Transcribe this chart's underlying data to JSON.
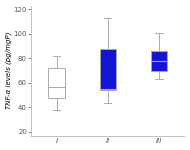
{
  "groups": [
    "I",
    "II",
    "III"
  ],
  "box_colors": [
    "#ffffff",
    "#1414d4",
    "#1414d4"
  ],
  "edge_color": "#aaaaaa",
  "median_color": "#aaaaaa",
  "whisker_color": "#aaaaaa",
  "ylabel": "TNF-α levels (pg/mgP)",
  "ylim": [
    17,
    123
  ],
  "yticks": [
    20,
    40,
    60,
    80,
    100,
    120
  ],
  "whisker_low": [
    38,
    44,
    63
  ],
  "whisker_high": [
    82,
    113,
    101
  ],
  "q1": [
    48,
    54,
    70
  ],
  "q3": [
    72,
    88,
    86
  ],
  "median": [
    57,
    55,
    78
  ],
  "background_color": "#ffffff",
  "plot_bg_color": "#ffffff",
  "label_fontsize": 5.0,
  "tick_fontsize": 5.0,
  "box_width": 0.32,
  "positions": [
    1,
    2,
    3
  ],
  "xlim": [
    0.5,
    3.5
  ]
}
